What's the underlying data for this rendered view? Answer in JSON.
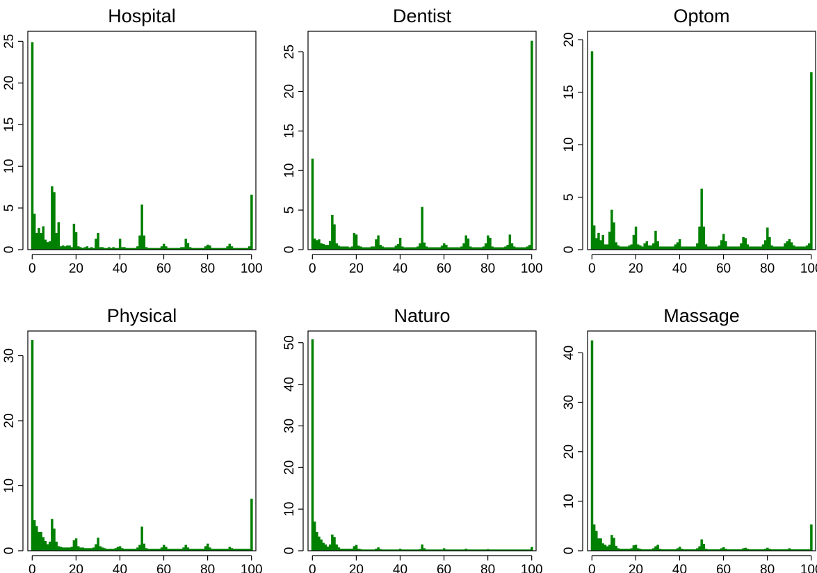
{
  "chart_data": [
    {
      "type": "bar",
      "title": "Hospital",
      "x_ticks": [
        0,
        20,
        40,
        60,
        80,
        100
      ],
      "y_ticks": [
        0,
        5,
        10,
        15,
        20,
        25
      ],
      "xlim": [
        -2,
        102
      ],
      "ylim": [
        0,
        26.2
      ],
      "grid": false,
      "color": "#008000",
      "x": [
        0,
        1,
        2,
        3,
        4,
        5,
        6,
        7,
        8,
        9,
        10,
        11,
        12,
        13,
        14,
        15,
        16,
        17,
        18,
        19,
        20,
        21,
        22,
        23,
        24,
        25,
        26,
        27,
        28,
        29,
        30,
        31,
        32,
        33,
        34,
        35,
        36,
        37,
        38,
        39,
        40,
        41,
        42,
        43,
        44,
        45,
        46,
        47,
        48,
        49,
        50,
        51,
        52,
        53,
        54,
        55,
        56,
        57,
        58,
        59,
        60,
        61,
        62,
        63,
        64,
        65,
        66,
        67,
        68,
        69,
        70,
        71,
        72,
        73,
        74,
        75,
        76,
        77,
        78,
        79,
        80,
        81,
        82,
        83,
        84,
        85,
        86,
        87,
        88,
        89,
        90,
        91,
        92,
        93,
        94,
        95,
        96,
        97,
        98,
        99,
        100
      ],
      "values": [
        24.9,
        4.3,
        2,
        2.6,
        2,
        2.8,
        1.2,
        0.9,
        1,
        7.6,
        6.9,
        2,
        3.3,
        0.4,
        0.5,
        0.4,
        0.5,
        0.5,
        0.3,
        3.1,
        2.1,
        0.4,
        0.3,
        0.2,
        0.3,
        0.4,
        0.2,
        0.3,
        0.2,
        1.3,
        2,
        0.3,
        0.3,
        0.2,
        0.2,
        0.3,
        0.2,
        0.3,
        0.2,
        0.2,
        1.3,
        0.3,
        0.3,
        0.2,
        0.2,
        0.2,
        0.2,
        0.2,
        0.4,
        1.7,
        5.4,
        1.7,
        0.3,
        0.2,
        0.2,
        0.2,
        0.2,
        0.2,
        0.2,
        0.4,
        0.7,
        0.4,
        0.2,
        0.2,
        0.2,
        0.2,
        0.2,
        0.2,
        0.3,
        0.3,
        1.3,
        0.8,
        0.3,
        0.2,
        0.2,
        0.2,
        0.2,
        0.2,
        0.2,
        0.4,
        0.6,
        0.5,
        0.2,
        0.2,
        0.2,
        0.2,
        0.2,
        0.2,
        0.2,
        0.4,
        0.7,
        0.4,
        0.2,
        0.2,
        0.2,
        0.2,
        0.2,
        0.2,
        0.2,
        0.4,
        6.6
      ]
    },
    {
      "type": "bar",
      "title": "Dentist",
      "x_ticks": [
        0,
        20,
        40,
        60,
        80,
        100
      ],
      "y_ticks": [
        0,
        5,
        10,
        15,
        20,
        25
      ],
      "xlim": [
        -2,
        102
      ],
      "ylim": [
        0,
        27.6
      ],
      "grid": false,
      "color": "#008000",
      "x": [
        0,
        1,
        2,
        3,
        4,
        5,
        6,
        7,
        8,
        9,
        10,
        11,
        12,
        13,
        14,
        15,
        16,
        17,
        18,
        19,
        20,
        21,
        22,
        23,
        24,
        25,
        26,
        27,
        28,
        29,
        30,
        31,
        32,
        33,
        34,
        35,
        36,
        37,
        38,
        39,
        40,
        41,
        42,
        43,
        44,
        45,
        46,
        47,
        48,
        49,
        50,
        51,
        52,
        53,
        54,
        55,
        56,
        57,
        58,
        59,
        60,
        61,
        62,
        63,
        64,
        65,
        66,
        67,
        68,
        69,
        70,
        71,
        72,
        73,
        74,
        75,
        76,
        77,
        78,
        79,
        80,
        81,
        82,
        83,
        84,
        85,
        86,
        87,
        88,
        89,
        90,
        91,
        92,
        93,
        94,
        95,
        96,
        97,
        98,
        99,
        100
      ],
      "values": [
        11.5,
        1.4,
        1.2,
        1.3,
        0.8,
        0.7,
        0.6,
        0.6,
        1.1,
        4.4,
        3.2,
        0.8,
        0.5,
        0.4,
        0.4,
        0.4,
        0.4,
        0.3,
        0.4,
        2.1,
        1.9,
        0.5,
        0.4,
        0.3,
        0.3,
        0.3,
        0.3,
        0.4,
        0.4,
        1.3,
        1.8,
        0.6,
        0.4,
        0.3,
        0.3,
        0.3,
        0.3,
        0.3,
        0.5,
        0.7,
        1.5,
        0.4,
        0.3,
        0.3,
        0.3,
        0.3,
        0.3,
        0.3,
        0.4,
        0.8,
        5.4,
        0.9,
        0.4,
        0.3,
        0.3,
        0.3,
        0.3,
        0.3,
        0.3,
        0.5,
        0.8,
        0.6,
        0.3,
        0.3,
        0.3,
        0.3,
        0.3,
        0.3,
        0.4,
        0.8,
        1.8,
        1.4,
        0.4,
        0.3,
        0.3,
        0.3,
        0.3,
        0.3,
        0.4,
        0.8,
        1.8,
        1.5,
        0.4,
        0.3,
        0.3,
        0.3,
        0.3,
        0.3,
        0.4,
        0.6,
        1.9,
        0.8,
        0.4,
        0.3,
        0.3,
        0.3,
        0.3,
        0.3,
        0.4,
        0.6,
        26.4
      ]
    },
    {
      "type": "bar",
      "title": "Optom",
      "x_ticks": [
        0,
        20,
        40,
        60,
        80,
        100
      ],
      "y_ticks": [
        0,
        5,
        10,
        15,
        20
      ],
      "xlim": [
        -2,
        102
      ],
      "ylim": [
        0,
        20.8
      ],
      "grid": false,
      "color": "#008000",
      "x": [
        0,
        1,
        2,
        3,
        4,
        5,
        6,
        7,
        8,
        9,
        10,
        11,
        12,
        13,
        14,
        15,
        16,
        17,
        18,
        19,
        20,
        21,
        22,
        23,
        24,
        25,
        26,
        27,
        28,
        29,
        30,
        31,
        32,
        33,
        34,
        35,
        36,
        37,
        38,
        39,
        40,
        41,
        42,
        43,
        44,
        45,
        46,
        47,
        48,
        49,
        50,
        51,
        52,
        53,
        54,
        55,
        56,
        57,
        58,
        59,
        60,
        61,
        62,
        63,
        64,
        65,
        66,
        67,
        68,
        69,
        70,
        71,
        72,
        73,
        74,
        75,
        76,
        77,
        78,
        79,
        80,
        81,
        82,
        83,
        84,
        85,
        86,
        87,
        88,
        89,
        90,
        91,
        92,
        93,
        94,
        95,
        96,
        97,
        98,
        99,
        100
      ],
      "values": [
        18.9,
        2.3,
        1.1,
        1.6,
        0.9,
        1.4,
        0.5,
        0.5,
        1.7,
        3.8,
        2.6,
        0.7,
        0.4,
        0.3,
        0.3,
        0.3,
        0.3,
        0.4,
        0.5,
        1.4,
        2.2,
        0.5,
        0.4,
        0.3,
        0.6,
        0.8,
        0.4,
        0.4,
        0.6,
        1.8,
        0.8,
        0.3,
        0.3,
        0.3,
        0.3,
        0.3,
        0.3,
        0.3,
        0.5,
        0.7,
        1,
        0.3,
        0.3,
        0.3,
        0.3,
        0.3,
        0.3,
        0.3,
        0.6,
        2.2,
        5.8,
        2.2,
        0.5,
        0.3,
        0.3,
        0.3,
        0.3,
        0.3,
        0.4,
        0.9,
        1.5,
        0.8,
        0.3,
        0.3,
        0.3,
        0.3,
        0.3,
        0.3,
        0.6,
        1.2,
        1.1,
        0.5,
        0.3,
        0.3,
        0.3,
        0.3,
        0.3,
        0.3,
        0.5,
        0.9,
        2.1,
        1.2,
        0.4,
        0.3,
        0.3,
        0.3,
        0.3,
        0.3,
        0.6,
        0.8,
        1,
        0.7,
        0.4,
        0.3,
        0.3,
        0.3,
        0.3,
        0.3,
        0.4,
        0.6,
        16.9
      ]
    },
    {
      "type": "bar",
      "title": "Physical",
      "x_ticks": [
        0,
        20,
        40,
        60,
        80,
        100
      ],
      "y_ticks": [
        0,
        10,
        20,
        30
      ],
      "xlim": [
        -2,
        102
      ],
      "ylim": [
        0,
        33.8
      ],
      "grid": false,
      "color": "#008000",
      "x": [
        0,
        1,
        2,
        3,
        4,
        5,
        6,
        7,
        8,
        9,
        10,
        11,
        12,
        13,
        14,
        15,
        16,
        17,
        18,
        19,
        20,
        21,
        22,
        23,
        24,
        25,
        26,
        27,
        28,
        29,
        30,
        31,
        32,
        33,
        34,
        35,
        36,
        37,
        38,
        39,
        40,
        41,
        42,
        43,
        44,
        45,
        46,
        47,
        48,
        49,
        50,
        51,
        52,
        53,
        54,
        55,
        56,
        57,
        58,
        59,
        60,
        61,
        62,
        63,
        64,
        65,
        66,
        67,
        68,
        69,
        70,
        71,
        72,
        73,
        74,
        75,
        76,
        77,
        78,
        79,
        80,
        81,
        82,
        83,
        84,
        85,
        86,
        87,
        88,
        89,
        90,
        91,
        92,
        93,
        94,
        95,
        96,
        97,
        98,
        99,
        100
      ],
      "values": [
        32.4,
        4.7,
        3.8,
        2.9,
        2.9,
        2.1,
        1.5,
        1,
        1.4,
        4.9,
        3.4,
        1.4,
        0.7,
        0.6,
        0.5,
        0.5,
        0.5,
        0.5,
        0.6,
        1.6,
        1.9,
        0.7,
        0.5,
        0.5,
        0.4,
        0.4,
        0.4,
        0.4,
        0.5,
        1,
        2,
        0.7,
        0.5,
        0.4,
        0.3,
        0.3,
        0.3,
        0.3,
        0.4,
        0.6,
        0.7,
        0.4,
        0.3,
        0.3,
        0.3,
        0.3,
        0.3,
        0.3,
        0.5,
        0.9,
        3.7,
        1.1,
        0.4,
        0.3,
        0.3,
        0.3,
        0.3,
        0.3,
        0.3,
        0.5,
        0.9,
        0.6,
        0.3,
        0.3,
        0.3,
        0.3,
        0.3,
        0.3,
        0.3,
        0.5,
        0.9,
        0.5,
        0.3,
        0.3,
        0.3,
        0.3,
        0.3,
        0.3,
        0.3,
        0.7,
        1.1,
        0.5,
        0.3,
        0.3,
        0.3,
        0.3,
        0.3,
        0.3,
        0.3,
        0.3,
        0.6,
        0.4,
        0.3,
        0.3,
        0.3,
        0.3,
        0.3,
        0.3,
        0.3,
        0.3,
        8
      ]
    },
    {
      "type": "bar",
      "title": "Naturo",
      "x_ticks": [
        0,
        20,
        40,
        60,
        80,
        100
      ],
      "y_ticks": [
        0,
        10,
        20,
        30,
        40,
        50
      ],
      "xlim": [
        -2,
        102
      ],
      "ylim": [
        0,
        52.8
      ],
      "grid": false,
      "color": "#008000",
      "x": [
        0,
        1,
        2,
        3,
        4,
        5,
        6,
        7,
        8,
        9,
        10,
        11,
        12,
        13,
        14,
        15,
        16,
        17,
        18,
        19,
        20,
        21,
        22,
        23,
        24,
        25,
        26,
        27,
        28,
        29,
        30,
        31,
        32,
        33,
        34,
        35,
        36,
        37,
        38,
        39,
        40,
        41,
        42,
        43,
        44,
        45,
        46,
        47,
        48,
        49,
        50,
        51,
        52,
        53,
        54,
        55,
        56,
        57,
        58,
        59,
        60,
        61,
        62,
        63,
        64,
        65,
        66,
        67,
        68,
        69,
        70,
        71,
        72,
        73,
        74,
        75,
        76,
        77,
        78,
        79,
        80,
        81,
        82,
        83,
        84,
        85,
        86,
        87,
        88,
        89,
        90,
        91,
        92,
        93,
        94,
        95,
        96,
        97,
        98,
        99,
        100
      ],
      "values": [
        50.8,
        7,
        4.5,
        3.4,
        2.7,
        1.9,
        1.5,
        1,
        1.5,
        3.9,
        3.3,
        1.5,
        0.8,
        0.5,
        0.5,
        0.5,
        0.5,
        0.5,
        0.5,
        1.1,
        1.4,
        0.5,
        0.4,
        0.3,
        0.3,
        0.3,
        0.3,
        0.3,
        0.3,
        0.5,
        0.8,
        0.4,
        0.3,
        0.3,
        0.3,
        0.3,
        0.3,
        0.3,
        0.3,
        0.3,
        0.5,
        0.3,
        0.3,
        0.3,
        0.3,
        0.3,
        0.3,
        0.3,
        0.3,
        0.4,
        1.5,
        0.6,
        0.3,
        0.3,
        0.3,
        0.3,
        0.3,
        0.3,
        0.3,
        0.3,
        0.6,
        0.3,
        0.3,
        0.3,
        0.3,
        0.3,
        0.3,
        0.3,
        0.3,
        0.3,
        0.5,
        0.3,
        0.3,
        0.3,
        0.3,
        0.3,
        0.3,
        0.3,
        0.3,
        0.3,
        0.4,
        0.3,
        0.3,
        0.3,
        0.3,
        0.3,
        0.3,
        0.3,
        0.3,
        0.3,
        0.3,
        0.3,
        0.3,
        0.3,
        0.3,
        0.3,
        0.3,
        0.3,
        0.3,
        0.3,
        0.9
      ]
    },
    {
      "type": "bar",
      "title": "Massage",
      "x_ticks": [
        0,
        20,
        40,
        60,
        80,
        100
      ],
      "y_ticks": [
        0,
        10,
        20,
        30,
        40
      ],
      "xlim": [
        -2,
        102
      ],
      "ylim": [
        0,
        44.4
      ],
      "grid": false,
      "color": "#008000",
      "x": [
        0,
        1,
        2,
        3,
        4,
        5,
        6,
        7,
        8,
        9,
        10,
        11,
        12,
        13,
        14,
        15,
        16,
        17,
        18,
        19,
        20,
        21,
        22,
        23,
        24,
        25,
        26,
        27,
        28,
        29,
        30,
        31,
        32,
        33,
        34,
        35,
        36,
        37,
        38,
        39,
        40,
        41,
        42,
        43,
        44,
        45,
        46,
        47,
        48,
        49,
        50,
        51,
        52,
        53,
        54,
        55,
        56,
        57,
        58,
        59,
        60,
        61,
        62,
        63,
        64,
        65,
        66,
        67,
        68,
        69,
        70,
        71,
        72,
        73,
        74,
        75,
        76,
        77,
        78,
        79,
        80,
        81,
        82,
        83,
        84,
        85,
        86,
        87,
        88,
        89,
        90,
        91,
        92,
        93,
        94,
        95,
        96,
        97,
        98,
        99,
        100
      ],
      "values": [
        42.5,
        5.3,
        4,
        2.5,
        2.5,
        1.5,
        1.2,
        0.9,
        1.2,
        3.2,
        2.6,
        1,
        0.5,
        0.4,
        0.4,
        0.4,
        0.4,
        0.4,
        0.5,
        1.1,
        1.2,
        0.5,
        0.4,
        0.3,
        0.3,
        0.3,
        0.3,
        0.3,
        0.5,
        0.9,
        1.2,
        0.4,
        0.3,
        0.3,
        0.3,
        0.3,
        0.3,
        0.3,
        0.3,
        0.5,
        0.8,
        0.4,
        0.3,
        0.3,
        0.3,
        0.3,
        0.3,
        0.3,
        0.5,
        0.9,
        2.3,
        1.4,
        0.4,
        0.3,
        0.3,
        0.3,
        0.3,
        0.3,
        0.3,
        0.5,
        0.7,
        0.4,
        0.3,
        0.3,
        0.3,
        0.3,
        0.3,
        0.3,
        0.3,
        0.5,
        0.6,
        0.4,
        0.3,
        0.3,
        0.3,
        0.3,
        0.3,
        0.3,
        0.3,
        0.4,
        0.6,
        0.4,
        0.3,
        0.3,
        0.3,
        0.3,
        0.3,
        0.3,
        0.3,
        0.3,
        0.5,
        0.3,
        0.3,
        0.3,
        0.3,
        0.3,
        0.3,
        0.3,
        0.3,
        0.3,
        5.3
      ]
    }
  ]
}
